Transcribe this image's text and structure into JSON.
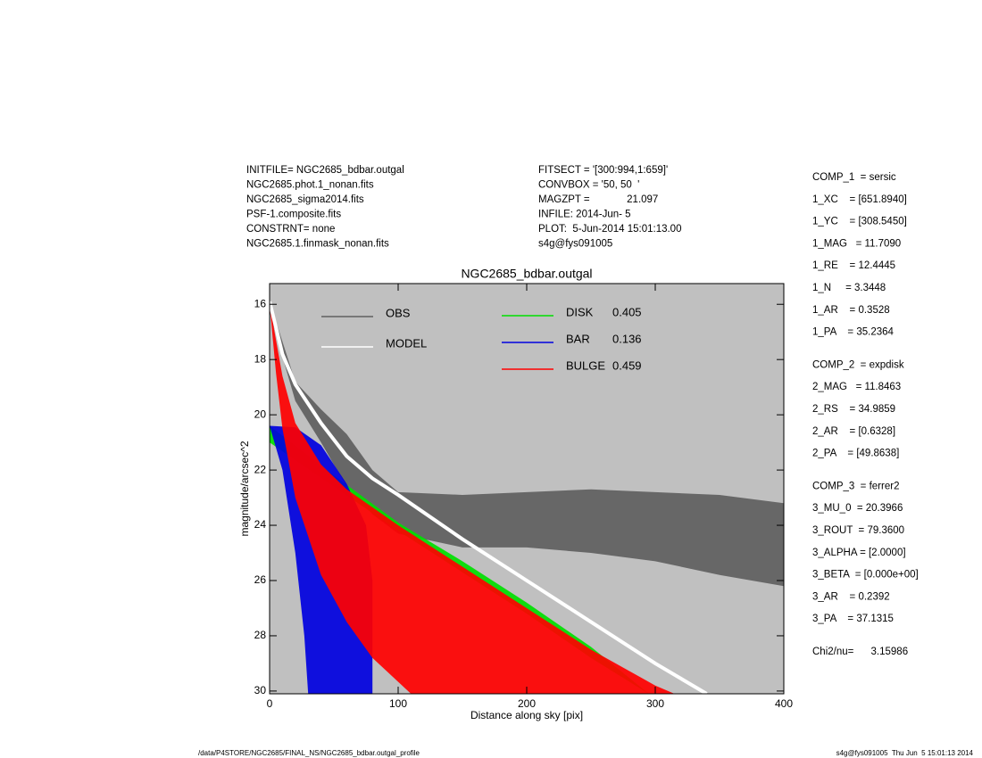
{
  "header": {
    "left": [
      "INITFILE= NGC2685_bdbar.outgal",
      "NGC2685.phot.1_nonan.fits",
      "NGC2685_sigma2014.fits",
      "PSF-1.composite.fits",
      "CONSTRNT= none",
      "NGC2685.1.finmask_nonan.fits"
    ],
    "middle": [
      "FITSECT = '[300:994,1:659]'",
      "CONVBOX = '50, 50  '",
      "MAGZPT =             21.097",
      "INFILE: 2014-Jun- 5",
      "PLOT:  5-Jun-2014 15:01:13.00",
      "s4g@fys091005"
    ]
  },
  "parameters": [
    [
      "COMP_1  = sersic",
      "1_XC    = [651.8940]",
      "1_YC    = [308.5450]",
      "1_MAG   = 11.7090",
      "1_RE    = 12.4445",
      "1_N     = 3.3448",
      "1_AR    = 0.3528",
      "1_PA    = 35.2364"
    ],
    [
      "COMP_2  = expdisk",
      "2_MAG   = 11.8463",
      "2_RS    = 34.9859",
      "2_AR    = [0.6328]",
      "2_PA    = [49.8638]"
    ],
    [
      "COMP_3  = ferrer2",
      "3_MU_0  = 20.3966",
      "3_ROUT  = 79.3600",
      "3_ALPHA = [2.0000]",
      "3_BETA  = [0.000e+00]",
      "3_AR    = 0.2392",
      "3_PA    = 37.1315"
    ],
    [
      "Chi2/nu=      3.15986"
    ]
  ],
  "footer": {
    "left": "/data/P4STORE/NGC2685/FINAL_NS/NGC2685_bdbar.outgal_profile",
    "right": "s4g@fys091005  Thu Jun  5 15:01:13 2014"
  },
  "chart_data": {
    "type": "area",
    "title": "NGC2685_bdbar.outgal",
    "x_label": "Distance along sky [pix]",
    "y_label": "magnitude/arcsec^2",
    "xlim": [
      0,
      400
    ],
    "xticks": [
      0,
      100,
      200,
      300,
      400
    ],
    "ylim": [
      15.25,
      30.1
    ],
    "y_inverted": true,
    "yticks": [
      16,
      18,
      20,
      22,
      24,
      26,
      28,
      30
    ],
    "background": "#c0c0c0",
    "series": [
      {
        "name": "OBS",
        "color": "#606060",
        "style": "band",
        "x": [
          0,
          20,
          40,
          60,
          80,
          100,
          150,
          200,
          250,
          300,
          350,
          400
        ],
        "values": [
          15.9,
          18.8,
          19.8,
          20.7,
          22.0,
          22.8,
          22.9,
          22.8,
          22.7,
          22.8,
          22.9,
          23.2
        ],
        "x_low": [
          0,
          20,
          40,
          60,
          80,
          100,
          150,
          200,
          250,
          300,
          350,
          400
        ],
        "values_low": [
          16.3,
          19.5,
          21.0,
          22.6,
          23.6,
          24.3,
          24.8,
          24.8,
          25.0,
          25.3,
          25.8,
          26.2
        ]
      },
      {
        "name": "DISK",
        "fraction": 0.405,
        "color": "#00e000",
        "style": "band",
        "x": [
          0,
          50,
          100,
          150,
          200,
          250,
          295
        ],
        "values": [
          20.4,
          22.2,
          23.9,
          25.3,
          26.8,
          28.4,
          30.1
        ],
        "x_low": [
          0,
          50,
          100,
          150,
          200,
          250,
          295
        ],
        "values_low": [
          21.0,
          22.6,
          24.2,
          25.7,
          27.2,
          28.8,
          30.1
        ]
      },
      {
        "name": "BAR",
        "fraction": 0.136,
        "color": "#0000e0",
        "style": "band",
        "x": [
          0,
          20,
          40,
          60,
          75,
          80,
          80
        ],
        "values": [
          20.4,
          20.45,
          21.1,
          22.5,
          24.0,
          26.0,
          30.1
        ],
        "x_low": [
          0,
          10,
          20,
          27,
          30
        ],
        "values_low": [
          20.4,
          22.0,
          25.0,
          28.0,
          30.1
        ]
      },
      {
        "name": "BULGE",
        "fraction": 0.459,
        "color": "#ff0000",
        "style": "band",
        "x": [
          0,
          10,
          20,
          40,
          60,
          100,
          150,
          200,
          250,
          300,
          315
        ],
        "values": [
          16.0,
          18.6,
          20.3,
          21.8,
          22.7,
          24.0,
          25.5,
          27.0,
          28.5,
          29.8,
          30.1
        ],
        "x_low": [
          0,
          5,
          10,
          20,
          40,
          60,
          80,
          110
        ],
        "values_low": [
          16.0,
          18.5,
          20.5,
          23.0,
          25.8,
          27.5,
          28.8,
          30.1
        ]
      },
      {
        "name": "MODEL",
        "color": "#ffffff",
        "style": "line",
        "x": [
          0,
          10,
          20,
          40,
          60,
          80,
          100,
          150,
          200,
          250,
          300,
          340
        ],
        "values": [
          15.9,
          17.8,
          18.9,
          20.3,
          21.5,
          22.3,
          22.9,
          24.5,
          26.0,
          27.5,
          29.0,
          30.1
        ]
      }
    ]
  }
}
